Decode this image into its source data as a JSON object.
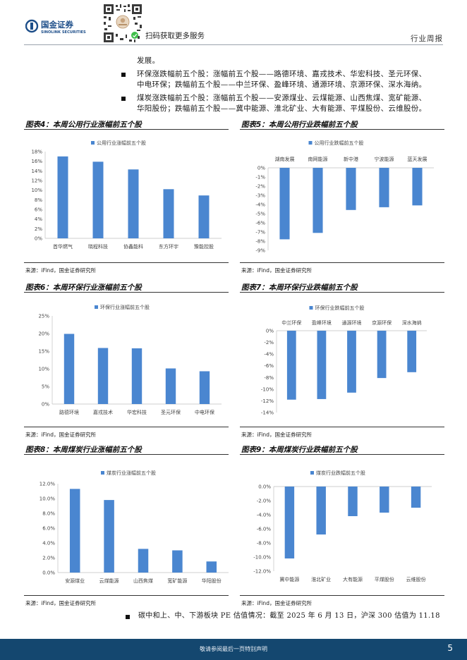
{
  "header": {
    "logo_cn": "国金证券",
    "logo_en": "SINOLINK SECURITIES",
    "qr_caption": "扫码获取更多服务",
    "section": "行业周报"
  },
  "body": {
    "line_prev": "发展。",
    "bullet_env_line1": "环保涨跌幅前五个股：涨幅前五个股——路德环境、嘉戎技术、华宏科技、圣元环保、",
    "bullet_env_line2": "中电环保；跌幅前五个股——中兰环保、盈峰环境、通源环境、京源环保、深水海纳。",
    "bullet_coal_line1": "煤炭涨跌幅前五个股：涨幅前五个股——安源煤业、云煤能源、山西焦煤、宽矿能源、",
    "bullet_coal_line2": "华阳股份；跌幅前五个股——冀中能源、淮北矿业、大有能源、平煤股份、云维股份。",
    "bullet_pe": "碳中和上、中、下游板块 PE 估值情况：截至 2025 年 6 月 13 日，沪深 300 估值为 11.18"
  },
  "figures": {
    "f4_title": "图表4：本周公用行业涨幅前五个股",
    "f5_title": "图表5：本周公用行业跌幅前五个股",
    "f6_title": "图表6：本周环保行业涨幅前五个股",
    "f7_title": "图表7：本周环保行业跌幅前五个股",
    "f8_title": "图表8：本周煤炭行业涨幅前五个股",
    "f9_title": "图表9：本周煤炭行业跌幅前五个股",
    "source": "来源：iFind，国金证券研究所"
  },
  "chart_data": [
    {
      "id": "f4",
      "type": "bar",
      "legend": "公用行业涨幅前五个股",
      "categories": [
        "首华燃气",
        "晓程科技",
        "协鑫能科",
        "东方环宇",
        "豫能控股"
      ],
      "values": [
        17.0,
        15.9,
        14.3,
        10.2,
        8.9
      ],
      "ylim": [
        0,
        18
      ],
      "ticks": [
        0,
        2,
        4,
        6,
        8,
        10,
        12,
        14,
        16,
        18
      ],
      "tick_suffix": "%",
      "decimals": 0,
      "legend_position": "top",
      "category_labels": "bottom"
    },
    {
      "id": "f5",
      "type": "bar",
      "legend": "公用行业跌幅前五个股",
      "categories": [
        "湖南发展",
        "南网能源",
        "新中港",
        "宁波能源",
        "蓝天发展"
      ],
      "values": [
        -7.8,
        -7.1,
        -4.6,
        -4.3,
        -4.1
      ],
      "ylim": [
        -9,
        0
      ],
      "ticks": [
        0,
        -1,
        -2,
        -3,
        -4,
        -5,
        -6,
        -7,
        -8,
        -9
      ],
      "tick_suffix": "%",
      "decimals": 0,
      "legend_position": "top",
      "category_labels": "top"
    },
    {
      "id": "f6",
      "type": "bar",
      "legend": "环保行业涨幅前五个股",
      "categories": [
        "路德环境",
        "嘉戎技术",
        "华宏科技",
        "圣元环保",
        "中电环保"
      ],
      "values": [
        19.9,
        15.9,
        15.8,
        10.1,
        9.3
      ],
      "ylim": [
        0,
        25
      ],
      "ticks": [
        0,
        5,
        10,
        15,
        20,
        25
      ],
      "tick_suffix": "%",
      "decimals": 0,
      "legend_position": "top",
      "category_labels": "bottom"
    },
    {
      "id": "f7",
      "type": "bar",
      "legend": "环保行业跌幅前五个股",
      "categories": [
        "中兰环保",
        "盈峰环境",
        "通源环境",
        "京源环保",
        "深水海纳"
      ],
      "values": [
        -11.8,
        -11.7,
        -10.6,
        -8.1,
        -7.1
      ],
      "ylim": [
        -14,
        0
      ],
      "ticks": [
        0,
        -2,
        -4,
        -6,
        -8,
        -10,
        -12,
        -14
      ],
      "tick_suffix": "%",
      "decimals": 0,
      "legend_position": "top",
      "category_labels": "top"
    },
    {
      "id": "f8",
      "type": "bar",
      "legend": "煤炭行业涨幅前五个股",
      "categories": [
        "安源煤业",
        "云煤能源",
        "山西焦煤",
        "宽矿能源",
        "华阳股份"
      ],
      "values": [
        11.3,
        9.8,
        3.2,
        3.0,
        1.5
      ],
      "ylim": [
        0,
        12
      ],
      "ticks": [
        0,
        2,
        4,
        6,
        8,
        10,
        12
      ],
      "tick_suffix": "%",
      "decimals": 1,
      "legend_position": "top",
      "category_labels": "bottom"
    },
    {
      "id": "f9",
      "type": "bar",
      "legend": "煤炭行业跌幅前五个股",
      "categories": [
        "冀中能源",
        "淮北矿业",
        "大有能源",
        "平煤股份",
        "云维股份"
      ],
      "values": [
        -10.2,
        -6.8,
        -4.2,
        -3.7,
        -3.0
      ],
      "ylim": [
        -12,
        0
      ],
      "ticks": [
        0,
        -2,
        -4,
        -6,
        -8,
        -10,
        -12
      ],
      "tick_suffix": "%",
      "decimals": 1,
      "legend_position": "top",
      "category_labels": "bottom"
    }
  ],
  "footer": {
    "disclaimer": "敬请参阅最后一页特别声明",
    "page": "5"
  },
  "colors": {
    "bar": "#4a86d0",
    "footer": "#14476f",
    "logo_blue": "#1d4e89"
  }
}
